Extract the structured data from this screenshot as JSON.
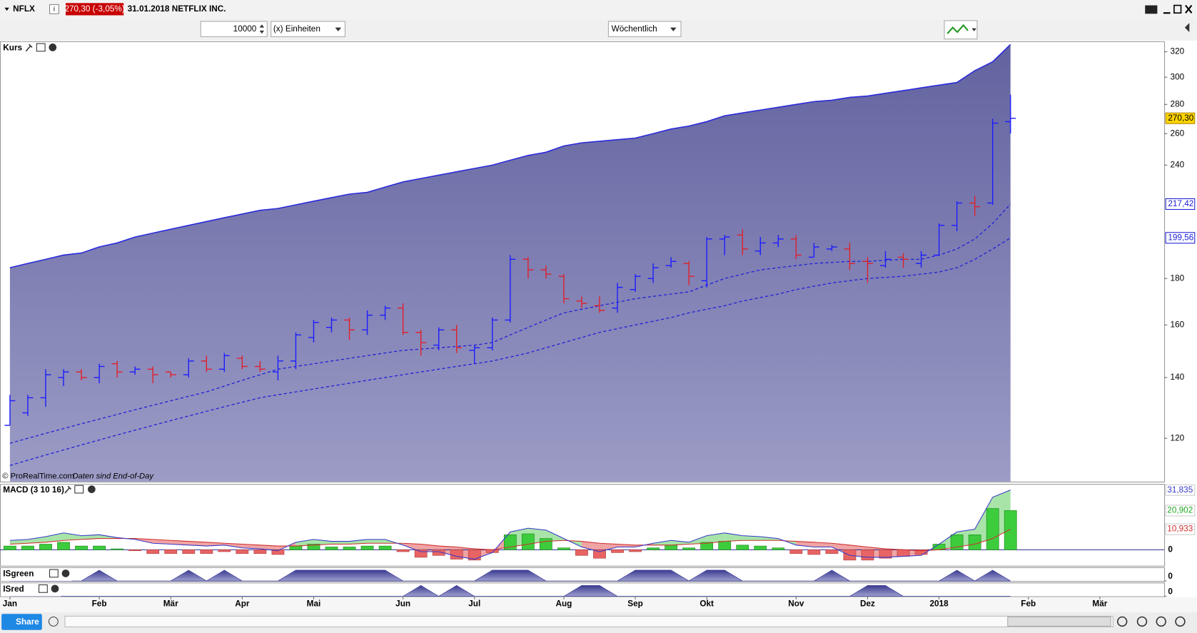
{
  "header": {
    "symbol": "NFLX",
    "price_change": "270,30 (-3,05%)",
    "date_name": "31.01.2018 NETFLIX INC."
  },
  "toolbar": {
    "quantity": "10000",
    "unit": "(x) Einheiten",
    "period": "Wöchentlich"
  },
  "footer": {
    "share": "Share"
  },
  "chart_data": [
    {
      "type": "ohlc",
      "title": "Kurs",
      "credit": "© ProRealTime.com",
      "source": "Daten sind End-of-Day",
      "log_scale": true,
      "up_color": "#1c1cff",
      "down_color": "#e0202a",
      "x": [
        0,
        1,
        2,
        3,
        4,
        5,
        6,
        7,
        8,
        9,
        10,
        11,
        12,
        13,
        14,
        15,
        16,
        17,
        18,
        19,
        20,
        21,
        22,
        23,
        24,
        25,
        26,
        27,
        28,
        29,
        30,
        31,
        32,
        33,
        34,
        35,
        36,
        37,
        38,
        39,
        40,
        41,
        42,
        43,
        44,
        45,
        46,
        47,
        48,
        49,
        50,
        51,
        52,
        53,
        54,
        55,
        56
      ],
      "open": [
        124,
        128,
        133,
        140,
        142,
        140,
        145,
        142,
        143,
        142,
        141,
        146,
        143,
        147,
        144,
        142,
        146,
        155,
        159,
        162,
        158,
        164,
        167,
        157,
        152,
        158,
        150,
        151,
        162,
        189,
        184,
        181,
        170,
        168,
        167,
        175,
        180,
        186,
        187,
        179,
        199,
        201,
        193,
        197,
        199,
        190,
        194,
        194,
        188,
        186,
        190,
        187,
        191,
        206,
        218,
        218,
        268
      ],
      "high": [
        134,
        134,
        143,
        143,
        143,
        145,
        146,
        144,
        144,
        142,
        147,
        148,
        149,
        148,
        146,
        148,
        157,
        162,
        163,
        163,
        166,
        168,
        169,
        158,
        159,
        160,
        152,
        163,
        191,
        190,
        186,
        182,
        172,
        172,
        178,
        182,
        187,
        190,
        188,
        200,
        201,
        204,
        200,
        201,
        201,
        197,
        196,
        197,
        190,
        193,
        192,
        193,
        207,
        219,
        222,
        270,
        287
      ],
      "low": [
        124,
        127,
        130,
        137,
        139,
        138,
        140,
        141,
        138,
        140,
        140,
        142,
        142,
        143,
        142,
        139,
        143,
        153,
        157,
        154,
        156,
        162,
        156,
        148,
        150,
        149,
        145,
        150,
        161,
        180,
        180,
        169,
        167,
        165,
        165,
        174,
        178,
        185,
        177,
        176,
        191,
        191,
        191,
        195,
        189,
        190,
        193,
        184,
        178,
        185,
        185,
        185,
        191,
        203,
        211,
        217,
        260
      ],
      "close": [
        132,
        133,
        141,
        142,
        140,
        144,
        142,
        143,
        141,
        141,
        146,
        143,
        148,
        144,
        143,
        146,
        156,
        161,
        162,
        158,
        164,
        167,
        157,
        153,
        158,
        151,
        151,
        162,
        189,
        184,
        182,
        171,
        169,
        166,
        176,
        181,
        185,
        188,
        181,
        199,
        200,
        194,
        197,
        199,
        191,
        195,
        195,
        187,
        187,
        189,
        189,
        191,
        206,
        218,
        216,
        267,
        270.3
      ],
      "close_label": "270,30",
      "band": {
        "color": "#2a2adc",
        "values": [
          185,
          187,
          189,
          191,
          192,
          195,
          197,
          200,
          202,
          204,
          206,
          208,
          210,
          212,
          214,
          215,
          217,
          219,
          221,
          223,
          224,
          227,
          230,
          232,
          234,
          236,
          238,
          240,
          243,
          246,
          248,
          252,
          254,
          255,
          256,
          257,
          260,
          263,
          265,
          268,
          272,
          274,
          276,
          278,
          280,
          282,
          283,
          285,
          286,
          288,
          290,
          292,
          294,
          296,
          305,
          312,
          326
        ]
      },
      "averages": [
        {
          "color": "#2020d8",
          "last_label": "217,42",
          "values": [
            118.5,
            120,
            121.5,
            123,
            124.5,
            126,
            127.5,
            129,
            130.5,
            132,
            133.5,
            135,
            137,
            139,
            141,
            143,
            144,
            145,
            146,
            147,
            148,
            149,
            150,
            150.5,
            151,
            151.5,
            152,
            153,
            156,
            159,
            162,
            165,
            166.5,
            168,
            169.5,
            171,
            172,
            173,
            174,
            177,
            180,
            182,
            184,
            185,
            186,
            187,
            187.5,
            188,
            188,
            188.5,
            189,
            189,
            191,
            194,
            199,
            207,
            217.42
          ]
        },
        {
          "color": "#2020d8",
          "last_label": "199,56",
          "values": [
            112,
            113.5,
            115,
            116.5,
            118,
            119.5,
            121,
            122.5,
            124,
            125.5,
            127,
            128.5,
            130,
            131.5,
            133,
            134,
            135,
            136,
            137,
            138,
            139,
            140,
            141,
            142,
            143,
            144,
            145,
            146,
            147.5,
            149,
            151,
            153,
            155,
            157,
            158.5,
            160,
            161.5,
            163,
            165,
            166.5,
            168,
            170,
            171.5,
            173,
            175,
            176.5,
            178,
            179,
            180,
            180.5,
            181,
            182,
            183,
            185,
            189,
            194,
            199.56
          ]
        }
      ],
      "xlim": [
        -0.556,
        64.6
      ],
      "ylim": [
        107.5,
        328
      ],
      "xticks": [
        {
          "value": 0,
          "label": "Jan"
        },
        {
          "value": 5,
          "label": "Feb"
        },
        {
          "value": 9,
          "label": "Mär"
        },
        {
          "value": 13,
          "label": "Apr"
        },
        {
          "value": 17,
          "label": "Mai"
        },
        {
          "value": 22,
          "label": "Jun"
        },
        {
          "value": 26,
          "label": "Jul"
        },
        {
          "value": 31,
          "label": "Aug"
        },
        {
          "value": 35,
          "label": "Sep"
        },
        {
          "value": 39,
          "label": "Okt"
        },
        {
          "value": 44,
          "label": "Nov"
        },
        {
          "value": 48,
          "label": "Dez"
        },
        {
          "value": 52,
          "label": "2018"
        },
        {
          "value": 57,
          "label": "Feb"
        },
        {
          "value": 61,
          "label": "Mär"
        }
      ],
      "yticks": [
        120,
        140,
        160,
        180,
        240,
        260,
        280,
        300,
        320
      ]
    },
    {
      "type": "macd",
      "title": "MACD (3 10 16)",
      "ylim": [
        -8.5,
        34.7
      ],
      "yticks": [
        0
      ],
      "histogram": {
        "pos_color": "#3ccc3c",
        "neg_color": "#e86464",
        "last_label": "20,902",
        "values": [
          2,
          2,
          3,
          4,
          2,
          2,
          0.5,
          -0.5,
          -2,
          -2,
          -2,
          -2,
          -1,
          -2,
          -2,
          -2.5,
          2,
          3,
          1.5,
          1.5,
          2,
          2,
          -1,
          -4,
          -3,
          -5,
          -5.5,
          -1.5,
          8,
          8.5,
          6,
          1,
          -3,
          -4.5,
          -1.5,
          -1,
          1,
          2.5,
          1,
          4,
          4.5,
          2.5,
          2,
          1,
          -2,
          -2.5,
          -2,
          -5.5,
          -5.5,
          -4.5,
          -3.5,
          -2.5,
          3,
          8,
          8,
          22,
          20.902
        ]
      },
      "macd": {
        "color": "#3a3ac8",
        "last_label": "31,835",
        "values": [
          5,
          5.5,
          7,
          9,
          7.5,
          8,
          6.5,
          5.5,
          3.5,
          3,
          2.5,
          2,
          2.5,
          1,
          0.5,
          -0.5,
          4,
          5.5,
          4.5,
          4.5,
          5.5,
          5.5,
          2.5,
          -1,
          -1,
          -3.5,
          -5,
          -1.5,
          9.5,
          11.5,
          10.5,
          6,
          1.5,
          -1,
          1.5,
          1.5,
          3.5,
          5,
          4,
          7.5,
          9,
          7.5,
          7,
          6,
          2.5,
          1.5,
          1.5,
          -3,
          -4,
          -4,
          -3.5,
          -3,
          3,
          9.5,
          11,
          28,
          31.835
        ]
      },
      "signal": {
        "color": "#d03030",
        "last_label": "10,933",
        "values": [
          3,
          3.5,
          4,
          5,
          5.5,
          6,
          6,
          6,
          5.5,
          5,
          4.5,
          4,
          3.5,
          3,
          2.5,
          2,
          2,
          2.5,
          3,
          3,
          3.5,
          3.5,
          3.5,
          3,
          2,
          1.5,
          0.5,
          0,
          1.5,
          3,
          4.5,
          5,
          4.5,
          3.5,
          3,
          2.5,
          2.5,
          2.5,
          3,
          3.5,
          4.5,
          5,
          5,
          5,
          4.5,
          4,
          3.5,
          2.5,
          1.5,
          0.5,
          0,
          -0.5,
          0,
          1.5,
          3,
          6,
          10.933
        ]
      }
    },
    {
      "type": "area",
      "title": "ISgreen",
      "color": "#4a4aa0",
      "ylim": [
        0,
        1.2
      ],
      "yticks": [
        0
      ],
      "values": [
        0,
        0,
        0,
        0,
        0,
        1,
        0,
        0,
        0,
        0,
        1,
        0,
        1,
        0,
        0,
        0,
        1,
        1,
        1,
        1,
        1,
        1,
        0,
        0,
        0,
        0,
        0,
        1,
        1,
        1,
        0,
        0,
        0,
        0,
        0,
        1,
        1,
        1,
        0,
        1,
        1,
        0,
        0,
        0,
        0,
        0,
        1,
        0,
        0,
        0,
        0,
        0,
        0,
        1,
        0,
        1,
        0
      ]
    },
    {
      "type": "area",
      "title": "ISred",
      "color": "#4a4aa0",
      "ylim": [
        0,
        1.2
      ],
      "yticks": [
        0
      ],
      "values": [
        0,
        0,
        0,
        0,
        0,
        0,
        0,
        0,
        0,
        0,
        0,
        0,
        0,
        0,
        0,
        0,
        0,
        0,
        0,
        0,
        0,
        0,
        0,
        1,
        0,
        1,
        0,
        0,
        0,
        0,
        0,
        0,
        1,
        1,
        0,
        0,
        0,
        0,
        0,
        0,
        0,
        0,
        0,
        0,
        0,
        0,
        0,
        0,
        1,
        1,
        0,
        0,
        0,
        0,
        0,
        0,
        0
      ]
    }
  ]
}
